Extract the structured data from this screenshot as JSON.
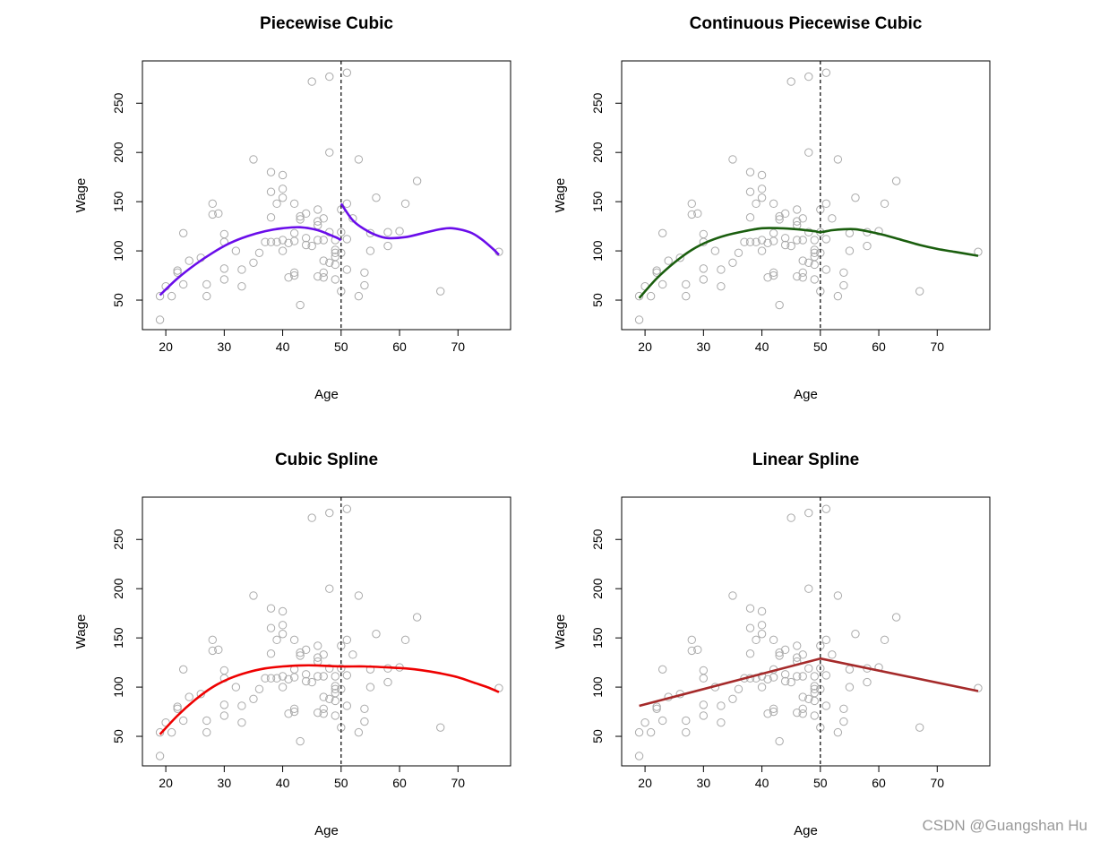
{
  "watermark": "CSDN @Guangshan Hu",
  "shared": {
    "xlabel": "Age",
    "ylabel": "Wage",
    "xlim": [
      16,
      79
    ],
    "ylim": [
      20,
      293
    ],
    "xticks": [
      20,
      30,
      40,
      50,
      60,
      70
    ],
    "yticks": [
      50,
      100,
      150,
      200,
      250
    ],
    "knot": 50,
    "point_color": "#aaaaaa",
    "points": [
      [
        19,
        30
      ],
      [
        19,
        54
      ],
      [
        20,
        64
      ],
      [
        21,
        54
      ],
      [
        22,
        78
      ],
      [
        22,
        80
      ],
      [
        23,
        66
      ],
      [
        23,
        118
      ],
      [
        24,
        90
      ],
      [
        26,
        93
      ],
      [
        27,
        66
      ],
      [
        27,
        54
      ],
      [
        28,
        137
      ],
      [
        28,
        148
      ],
      [
        29,
        138
      ],
      [
        30,
        117
      ],
      [
        30,
        109
      ],
      [
        30,
        82
      ],
      [
        30,
        71
      ],
      [
        32,
        100
      ],
      [
        33,
        81
      ],
      [
        33,
        64
      ],
      [
        35,
        193
      ],
      [
        35,
        88
      ],
      [
        36,
        98
      ],
      [
        37,
        109
      ],
      [
        38,
        180
      ],
      [
        38,
        160
      ],
      [
        38,
        134
      ],
      [
        38,
        109
      ],
      [
        39,
        109
      ],
      [
        39,
        148
      ],
      [
        40,
        177
      ],
      [
        40,
        163
      ],
      [
        40,
        154
      ],
      [
        40,
        111
      ],
      [
        40,
        100
      ],
      [
        41,
        108
      ],
      [
        41,
        73
      ],
      [
        42,
        148
      ],
      [
        42,
        118
      ],
      [
        42,
        110
      ],
      [
        42,
        78
      ],
      [
        42,
        75
      ],
      [
        43,
        45
      ],
      [
        43,
        132
      ],
      [
        43,
        135
      ],
      [
        44,
        138
      ],
      [
        44,
        113
      ],
      [
        44,
        106
      ],
      [
        45,
        272
      ],
      [
        45,
        105
      ],
      [
        46,
        142
      ],
      [
        46,
        130
      ],
      [
        46,
        126
      ],
      [
        46,
        111
      ],
      [
        46,
        74
      ],
      [
        47,
        133
      ],
      [
        47,
        111
      ],
      [
        47,
        78
      ],
      [
        47,
        90
      ],
      [
        47,
        73
      ],
      [
        48,
        200
      ],
      [
        48,
        277
      ],
      [
        48,
        119
      ],
      [
        48,
        88
      ],
      [
        49,
        111
      ],
      [
        49,
        101
      ],
      [
        49,
        98
      ],
      [
        49,
        94
      ],
      [
        49,
        86
      ],
      [
        49,
        71
      ],
      [
        50,
        59
      ],
      [
        50,
        98
      ],
      [
        50,
        119
      ],
      [
        50,
        142
      ],
      [
        51,
        148
      ],
      [
        51,
        112
      ],
      [
        51,
        81
      ],
      [
        51,
        281
      ],
      [
        52,
        133
      ],
      [
        53,
        193
      ],
      [
        53,
        54
      ],
      [
        54,
        65
      ],
      [
        54,
        78
      ],
      [
        55,
        100
      ],
      [
        55,
        118
      ],
      [
        56,
        154
      ],
      [
        58,
        105
      ],
      [
        58,
        119
      ],
      [
        60,
        120
      ],
      [
        61,
        148
      ],
      [
        63,
        171
      ],
      [
        67,
        59
      ],
      [
        77,
        99
      ]
    ]
  },
  "chart_data": [
    {
      "type": "scatter",
      "title": "Piecewise Cubic",
      "xlabel": "Age",
      "ylabel": "Wage",
      "xlim": [
        16,
        79
      ],
      "ylim": [
        20,
        293
      ],
      "fit_color": "#6a0dea",
      "fit_segments": [
        [
          [
            19,
            55
          ],
          [
            22,
            72
          ],
          [
            25,
            86
          ],
          [
            28,
            98
          ],
          [
            31,
            108
          ],
          [
            34,
            115
          ],
          [
            37,
            120
          ],
          [
            40,
            123
          ],
          [
            43,
            124
          ],
          [
            46,
            121
          ],
          [
            49,
            114
          ],
          [
            50,
            111
          ]
        ],
        [
          [
            50,
            148
          ],
          [
            52,
            131
          ],
          [
            54,
            122
          ],
          [
            56,
            116
          ],
          [
            58,
            113
          ],
          [
            61,
            114
          ],
          [
            64,
            118
          ],
          [
            67,
            122
          ],
          [
            69,
            123
          ],
          [
            72,
            119
          ],
          [
            74,
            112
          ],
          [
            76,
            102
          ],
          [
            77,
            96
          ]
        ]
      ]
    },
    {
      "type": "scatter",
      "title": "Continuous Piecewise Cubic",
      "xlabel": "Age",
      "ylabel": "Wage",
      "xlim": [
        16,
        79
      ],
      "ylim": [
        20,
        293
      ],
      "fit_color": "#1a5e0e",
      "fit_segments": [
        [
          [
            19,
            52
          ],
          [
            22,
            72
          ],
          [
            25,
            88
          ],
          [
            28,
            101
          ],
          [
            31,
            110
          ],
          [
            34,
            116
          ],
          [
            37,
            120
          ],
          [
            40,
            123
          ],
          [
            43,
            123
          ],
          [
            46,
            122
          ],
          [
            49,
            120
          ],
          [
            50,
            119
          ],
          [
            52,
            121
          ],
          [
            54,
            122
          ],
          [
            56,
            122
          ],
          [
            58,
            120
          ],
          [
            61,
            116
          ],
          [
            64,
            111
          ],
          [
            67,
            106
          ],
          [
            70,
            102
          ],
          [
            73,
            99
          ],
          [
            77,
            95
          ]
        ]
      ]
    },
    {
      "type": "scatter",
      "title": "Cubic Spline",
      "xlabel": "Age",
      "ylabel": "Wage",
      "xlim": [
        16,
        79
      ],
      "ylim": [
        20,
        293
      ],
      "fit_color": "#ee0000",
      "fit_segments": [
        [
          [
            19,
            52
          ],
          [
            22,
            71
          ],
          [
            25,
            87
          ],
          [
            28,
            100
          ],
          [
            31,
            109
          ],
          [
            34,
            115
          ],
          [
            37,
            119
          ],
          [
            40,
            121
          ],
          [
            43,
            122
          ],
          [
            46,
            122
          ],
          [
            50,
            121
          ],
          [
            54,
            121
          ],
          [
            58,
            120
          ],
          [
            61,
            119
          ],
          [
            64,
            117
          ],
          [
            67,
            114
          ],
          [
            70,
            110
          ],
          [
            73,
            104
          ],
          [
            75,
            100
          ],
          [
            77,
            95
          ]
        ]
      ]
    },
    {
      "type": "line",
      "title": "Linear Spline",
      "xlabel": "Age",
      "ylabel": "Wage",
      "xlim": [
        16,
        79
      ],
      "ylim": [
        20,
        293
      ],
      "fit_color": "#a52a2a",
      "fit_segments": [
        [
          [
            19,
            81
          ],
          [
            50,
            129
          ],
          [
            77,
            96
          ]
        ]
      ]
    }
  ]
}
